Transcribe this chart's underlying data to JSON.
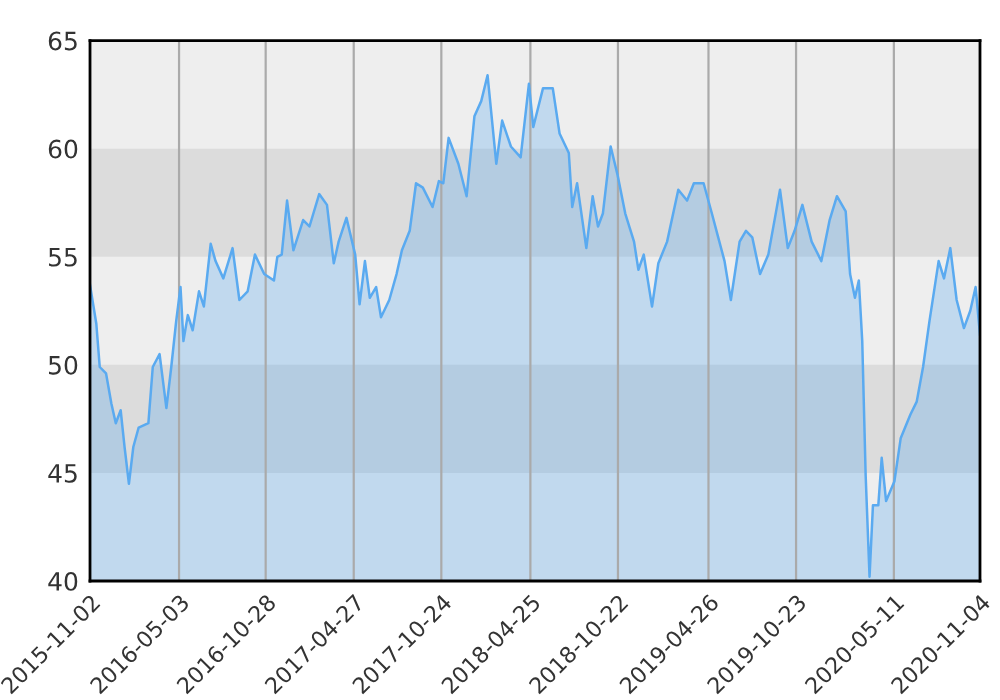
{
  "chart_data": {
    "type": "area",
    "x": [
      "2015-11-02",
      "2015-11-15",
      "2015-11-22",
      "2015-12-05",
      "2015-12-16",
      "2015-12-25",
      "2016-01-04",
      "2016-01-12",
      "2016-01-21",
      "2016-01-30",
      "2016-02-10",
      "2016-03-01",
      "2016-03-10",
      "2016-03-24",
      "2016-04-07",
      "2016-04-17",
      "2016-04-27",
      "2016-05-06",
      "2016-05-12",
      "2016-05-21",
      "2016-05-31",
      "2016-06-13",
      "2016-06-23",
      "2016-07-07",
      "2016-07-17",
      "2016-08-02",
      "2016-08-21",
      "2016-09-04",
      "2016-09-21",
      "2016-10-06",
      "2016-10-25",
      "2016-11-14",
      "2016-11-21",
      "2016-11-30",
      "2016-12-11",
      "2016-12-24",
      "2017-01-13",
      "2017-01-26",
      "2017-02-15",
      "2017-03-03",
      "2017-03-17",
      "2017-03-27",
      "2017-04-12",
      "2017-04-30",
      "2017-05-09",
      "2017-05-20",
      "2017-05-30",
      "2017-06-12",
      "2017-06-22",
      "2017-07-09",
      "2017-07-24",
      "2017-08-04",
      "2017-08-20",
      "2017-09-02",
      "2017-09-16",
      "2017-10-06",
      "2017-10-19",
      "2017-10-28",
      "2017-11-08",
      "2017-11-28",
      "2017-12-15",
      "2017-12-31",
      "2018-01-14",
      "2018-01-27",
      "2018-02-14",
      "2018-02-26",
      "2018-03-16",
      "2018-04-05",
      "2018-04-22",
      "2018-05-01",
      "2018-05-21",
      "2018-06-10",
      "2018-06-24",
      "2018-07-13",
      "2018-07-20",
      "2018-07-30",
      "2018-08-18",
      "2018-08-31",
      "2018-09-11",
      "2018-09-21",
      "2018-10-07",
      "2018-10-21",
      "2018-11-06",
      "2018-11-24",
      "2018-12-03",
      "2018-12-14",
      "2018-12-31",
      "2019-01-13",
      "2019-01-31",
      "2019-02-23",
      "2019-03-13",
      "2019-03-27",
      "2019-04-16",
      "2019-05-03",
      "2019-05-16",
      "2019-05-29",
      "2019-06-11",
      "2019-06-29",
      "2019-07-12",
      "2019-07-25",
      "2019-08-10",
      "2019-08-27",
      "2019-09-12",
      "2019-09-20",
      "2019-10-06",
      "2019-10-20",
      "2019-11-05",
      "2019-11-24",
      "2019-12-14",
      "2019-12-31",
      "2020-01-15",
      "2020-02-02",
      "2020-02-11",
      "2020-02-21",
      "2020-02-29",
      "2020-03-07",
      "2020-03-14",
      "2020-03-22",
      "2020-03-29",
      "2020-04-09",
      "2020-04-16",
      "2020-04-25",
      "2020-05-12",
      "2020-05-25",
      "2020-06-14",
      "2020-06-27",
      "2020-07-10",
      "2020-07-23",
      "2020-08-11",
      "2020-08-22",
      "2020-09-04",
      "2020-09-17",
      "2020-10-02",
      "2020-10-15",
      "2020-10-26",
      "2020-11-04"
    ],
    "series": [
      {
        "color": "#5aaaf0",
        "values": [
          53.7,
          51.9,
          49.9,
          49.6,
          48.2,
          47.3,
          47.9,
          46.2,
          44.5,
          46.2,
          47.1,
          47.3,
          49.9,
          50.5,
          48.0,
          49.9,
          52.0,
          53.6,
          51.1,
          52.3,
          51.6,
          53.4,
          52.7,
          55.6,
          54.8,
          54.0,
          55.4,
          53.0,
          53.4,
          55.1,
          54.2,
          53.9,
          55.0,
          55.1,
          57.6,
          55.3,
          56.7,
          56.4,
          57.9,
          57.4,
          54.7,
          55.7,
          56.8,
          55.1,
          52.8,
          54.8,
          53.1,
          53.6,
          52.2,
          53.0,
          54.2,
          55.3,
          56.2,
          58.4,
          58.2,
          57.3,
          58.5,
          58.4,
          60.5,
          59.3,
          57.8,
          61.5,
          62.2,
          63.4,
          59.3,
          61.3,
          60.1,
          59.6,
          63.0,
          61.0,
          62.8,
          62.8,
          60.7,
          59.8,
          57.3,
          58.4,
          55.4,
          57.8,
          56.4,
          57.0,
          60.1,
          58.8,
          57.0,
          55.7,
          54.4,
          55.1,
          52.7,
          54.7,
          55.7,
          58.1,
          57.6,
          58.4,
          58.4,
          57.0,
          55.9,
          54.8,
          53.0,
          55.7,
          56.2,
          55.9,
          54.2,
          55.1,
          57.1,
          58.1,
          55.4,
          56.2,
          57.4,
          55.7,
          54.8,
          56.7,
          57.8,
          57.1,
          54.2,
          53.1,
          53.9,
          51.1,
          44.9,
          40.2,
          43.5,
          43.5,
          45.7,
          43.7,
          44.6,
          46.6,
          47.7,
          48.3,
          49.9,
          52.0,
          54.8,
          54.0,
          55.4,
          53.0,
          51.7,
          52.5,
          53.6,
          51.4
        ]
      }
    ],
    "xlim": [
      "2015-11-02",
      "2020-11-04"
    ],
    "xticks": [
      "2015-11-02",
      "2016-05-03",
      "2016-10-28",
      "2017-04-27",
      "2017-10-24",
      "2018-04-25",
      "2018-10-22",
      "2019-04-26",
      "2019-10-23",
      "2020-05-11",
      "2020-11-04"
    ],
    "ylim": [
      40,
      65
    ],
    "yticks": [
      40,
      45,
      50,
      55,
      60,
      65
    ],
    "bands": [
      {
        "axis": "y",
        "from": 45,
        "to": 50,
        "color": "#dcdcdc"
      },
      {
        "axis": "y",
        "from": 55,
        "to": 60,
        "color": "#dcdcdc"
      }
    ],
    "grid": "x"
  }
}
